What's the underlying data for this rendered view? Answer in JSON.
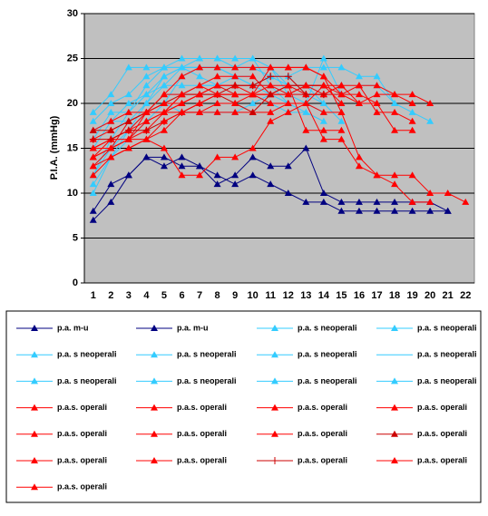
{
  "chart_data": {
    "type": "line",
    "y_label": "P.I.A. (mmHg)",
    "categories": [
      "1",
      "2",
      "3",
      "4",
      "5",
      "6",
      "7",
      "8",
      "9",
      "10",
      "11",
      "12",
      "13",
      "14",
      "15",
      "16",
      "17",
      "18",
      "19",
      "20",
      "21",
      "22"
    ],
    "ylim": [
      0,
      30
    ],
    "yticks": [
      0,
      5,
      10,
      15,
      20,
      25,
      30
    ],
    "grid": true,
    "legend": "bottom",
    "series": [
      {
        "name": "p.a. m-u",
        "color": "#000080",
        "marker": "triangle",
        "values": [
          7,
          9,
          12,
          14,
          14,
          13,
          13,
          12,
          11,
          12,
          11,
          10,
          9,
          9,
          8,
          8,
          8,
          8,
          8,
          8,
          8,
          null
        ]
      },
      {
        "name": "p.a. m-u",
        "color": "#000080",
        "marker": "triangle",
        "values": [
          8,
          11,
          12,
          14,
          13,
          14,
          13,
          11,
          12,
          14,
          13,
          13,
          15,
          10,
          9,
          9,
          9,
          9,
          9,
          9,
          8,
          null
        ]
      },
      {
        "name": "p.a. s neoperali",
        "color": "#33ccff",
        "marker": "triangle",
        "values": [
          19,
          21,
          24,
          24,
          24,
          25,
          25,
          25,
          25,
          25,
          22,
          21,
          20,
          25,
          21,
          null,
          null,
          null,
          null,
          null,
          null,
          null
        ]
      },
      {
        "name": "p.a. s neoperali",
        "color": "#33ccff",
        "marker": "triangle",
        "values": [
          18,
          20,
          21,
          23,
          24,
          24,
          24,
          24,
          24,
          24,
          23,
          23,
          24,
          24,
          24,
          23,
          23,
          20,
          null,
          null,
          null,
          null
        ]
      },
      {
        "name": "p.a. s neoperali",
        "color": "#33ccff",
        "marker": "triangle",
        "values": [
          10,
          14,
          17,
          20,
          23,
          24,
          25,
          25,
          24,
          25,
          24,
          21,
          22,
          20,
          18,
          null,
          null,
          null,
          null,
          null,
          null,
          null
        ]
      },
      {
        "name": "p.a. s neoperali",
        "color": "#33ccff",
        "marker": "triangle",
        "values": [
          12,
          15,
          18,
          20,
          22,
          24,
          24,
          24,
          24,
          24,
          24,
          22,
          21,
          20,
          null,
          null,
          null,
          null,
          null,
          null,
          null,
          null
        ]
      },
      {
        "name": "p.a. s neoperali",
        "color": "#33ccff",
        "marker": "triangle",
        "values": [
          11,
          14,
          16,
          18,
          20,
          23,
          24,
          24,
          23,
          22,
          22,
          20,
          20,
          19,
          null,
          null,
          null,
          null,
          null,
          null,
          null,
          null
        ]
      },
      {
        "name": "p.a. s neoperali",
        "color": "#33ccff",
        "marker": "none",
        "values": [
          13,
          15,
          17,
          19,
          21,
          21,
          22,
          22,
          23,
          23,
          21,
          20,
          19,
          18,
          null,
          null,
          null,
          null,
          null,
          null,
          null,
          null
        ]
      },
      {
        "name": "p.a. s neoperali",
        "color": "#33ccff",
        "marker": "triangle",
        "values": [
          16,
          19,
          19,
          21,
          23,
          24,
          24,
          24,
          23,
          22,
          21,
          22,
          22,
          21,
          22,
          null,
          null,
          null,
          null,
          null,
          null,
          null
        ]
      },
      {
        "name": "p.a. s neoperali",
        "color": "#33ccff",
        "marker": "triangle",
        "values": [
          17,
          18,
          18,
          19,
          20,
          19,
          19,
          19,
          19,
          20,
          21,
          21,
          21,
          null,
          null,
          null,
          null,
          null,
          null,
          null,
          null,
          null
        ]
      },
      {
        "name": "p.a. s neoperali",
        "color": "#33ccff",
        "marker": "triangle",
        "values": [
          15,
          18,
          20,
          21,
          22,
          22,
          22,
          22,
          22,
          22,
          23,
          22,
          22,
          21,
          21,
          22,
          22,
          20,
          19,
          18,
          null,
          null
        ]
      },
      {
        "name": "p.a. s neoperali",
        "color": "#33ccff",
        "marker": "triangle",
        "values": [
          12,
          16,
          19,
          22,
          24,
          24,
          23,
          22,
          21,
          21,
          20,
          19,
          19,
          18,
          null,
          null,
          null,
          null,
          null,
          null,
          null,
          null
        ]
      },
      {
        "name": "p.a.s. operali",
        "color": "#ff0000",
        "marker": "triangle",
        "values": [
          17,
          18,
          19,
          19,
          19,
          21,
          21,
          21,
          21,
          21,
          21,
          21,
          21,
          21,
          21,
          21,
          20,
          17,
          17,
          null,
          null,
          null
        ]
      },
      {
        "name": "p.a.s. operali",
        "color": "#ff0000",
        "marker": "triangle",
        "values": [
          13,
          15,
          18,
          19,
          21,
          23,
          24,
          24,
          24,
          24,
          24,
          24,
          24,
          23,
          21,
          20,
          21,
          21,
          20,
          null,
          null,
          null
        ]
      },
      {
        "name": "p.a.s. operali",
        "color": "#ff0000",
        "marker": "triangle",
        "values": [
          15,
          16,
          17,
          18,
          19,
          20,
          21,
          22,
          22,
          21,
          21,
          21,
          22,
          22,
          21,
          22,
          19,
          19,
          18,
          null,
          null,
          null
        ]
      },
      {
        "name": "p.a.s. operali",
        "color": "#ff0000",
        "marker": "triangle",
        "values": [
          16,
          17,
          18,
          19,
          19,
          21,
          22,
          23,
          23,
          23,
          21,
          22,
          22,
          22,
          22,
          22,
          22,
          21,
          21,
          20,
          null,
          null
        ]
      },
      {
        "name": "p.a.s. operali",
        "color": "#ff0000",
        "marker": "triangle",
        "values": [
          14,
          16,
          16,
          17,
          19,
          20,
          21,
          22,
          21,
          21,
          21,
          22,
          21,
          21,
          22,
          20,
          20,
          null,
          null,
          null,
          null,
          null
        ]
      },
      {
        "name": "p.a.s. operali",
        "color": "#ff0000",
        "marker": "triangle",
        "values": [
          15,
          15,
          16,
          18,
          19,
          19,
          19,
          19,
          19,
          19,
          19,
          20,
          20,
          19,
          19,
          14,
          12,
          12,
          12,
          10,
          10,
          9
        ]
      },
      {
        "name": "p.a.s. operali",
        "color": "#ff0000",
        "marker": "triangle",
        "values": [
          12,
          14,
          15,
          16,
          15,
          12,
          12,
          14,
          14,
          15,
          18,
          19,
          20,
          16,
          16,
          13,
          12,
          11,
          9,
          9,
          null,
          null
        ]
      },
      {
        "name": "p.a.s. operali",
        "color": "#cc0000",
        "marker": "triangle",
        "values": [
          17,
          17,
          18,
          19,
          20,
          21,
          21,
          21,
          20,
          19,
          21,
          22,
          22,
          22,
          null,
          null,
          null,
          null,
          null,
          null,
          null,
          null
        ]
      },
      {
        "name": "p.a.s. operali",
        "color": "#ff0000",
        "marker": "triangle",
        "values": [
          15,
          16,
          17,
          19,
          21,
          21,
          22,
          21,
          21,
          21,
          24,
          24,
          24,
          23,
          19,
          null,
          null,
          null,
          null,
          null,
          null,
          null
        ]
      },
      {
        "name": "p.a.s. operali",
        "color": "#ff0000",
        "marker": "triangle",
        "values": [
          14,
          15,
          16,
          19,
          20,
          20,
          21,
          22,
          22,
          22,
          22,
          21,
          22,
          21,
          22,
          null,
          null,
          null,
          null,
          null,
          null,
          null
        ]
      },
      {
        "name": "p.a.s. operali",
        "color": "#cc0000",
        "marker": "plus",
        "values": [
          16,
          16,
          17,
          17,
          18,
          19,
          20,
          21,
          22,
          22,
          23,
          23,
          21,
          21,
          null,
          null,
          null,
          null,
          null,
          null,
          null,
          null
        ]
      },
      {
        "name": "p.a.s. operali",
        "color": "#ff0000",
        "marker": "triangle",
        "values": [
          13,
          14,
          15,
          16,
          17,
          19,
          19,
          20,
          20,
          21,
          20,
          20,
          20,
          22,
          20,
          null,
          null,
          null,
          null,
          null,
          null,
          null
        ]
      },
      {
        "name": "p.a.s. operali",
        "color": "#ff0000",
        "marker": "triangle",
        "values": [
          14,
          15,
          16,
          16,
          18,
          19,
          20,
          21,
          21,
          21,
          22,
          22,
          17,
          17,
          17,
          null,
          null,
          null,
          null,
          null,
          null,
          null
        ]
      }
    ]
  }
}
